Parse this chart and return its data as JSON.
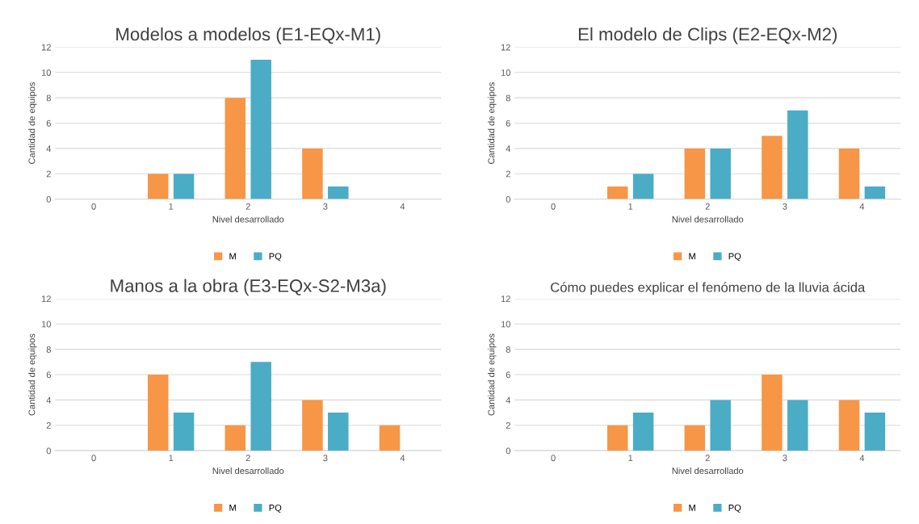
{
  "chart_data": [
    {
      "type": "bar",
      "title": "Modelos a modelos (E1-EQx-M1)",
      "xlabel": "Nivel desarrollado",
      "ylabel": "Cantidad de equipos",
      "categories": [
        "0",
        "1",
        "2",
        "3",
        "4"
      ],
      "ylim": [
        0,
        12
      ],
      "yticks": [
        0,
        2,
        4,
        6,
        8,
        10,
        12
      ],
      "grid": "y",
      "legend": "bottom",
      "series": [
        {
          "name": "M",
          "color": "#f79646",
          "values": [
            0,
            2,
            8,
            4,
            0
          ]
        },
        {
          "name": "PQ",
          "color": "#4bacc6",
          "values": [
            0,
            2,
            11,
            1,
            0
          ]
        }
      ]
    },
    {
      "type": "bar",
      "title": "El modelo de Clips (E2-EQx-M2)",
      "xlabel": "Nivel desarrollado",
      "ylabel": "Cantidad de equipos",
      "categories": [
        "0",
        "1",
        "2",
        "3",
        "4"
      ],
      "ylim": [
        0,
        12
      ],
      "yticks": [
        0,
        2,
        4,
        6,
        8,
        10,
        12
      ],
      "grid": "y",
      "legend": "bottom",
      "series": [
        {
          "name": "M",
          "color": "#f79646",
          "values": [
            0,
            1,
            4,
            5,
            4
          ]
        },
        {
          "name": "PQ",
          "color": "#4bacc6",
          "values": [
            0,
            2,
            4,
            7,
            1
          ]
        }
      ]
    },
    {
      "type": "bar",
      "title": "Manos a la obra (E3-EQx-S2-M3a)",
      "xlabel": "Nivel desarrollado",
      "ylabel": "Cantidad de equipos",
      "categories": [
        "0",
        "1",
        "2",
        "3",
        "4"
      ],
      "ylim": [
        0,
        12
      ],
      "yticks": [
        0,
        2,
        4,
        6,
        8,
        10,
        12
      ],
      "grid": "y",
      "legend": "bottom",
      "series": [
        {
          "name": "M",
          "color": "#f79646",
          "values": [
            0,
            6,
            2,
            4,
            2
          ]
        },
        {
          "name": "PQ",
          "color": "#4bacc6",
          "values": [
            0,
            3,
            7,
            3,
            0
          ]
        }
      ]
    },
    {
      "type": "bar",
      "title": "Cómo puedes explicar el fenómeno de la lluvia ácida",
      "xlabel": "Nivel desarrollado",
      "ylabel": "Cantidad de equipos",
      "categories": [
        "0",
        "1",
        "2",
        "3",
        "4"
      ],
      "ylim": [
        0,
        12
      ],
      "yticks": [
        0,
        2,
        4,
        6,
        8,
        10,
        12
      ],
      "grid": "y",
      "legend": "bottom",
      "series": [
        {
          "name": "M",
          "color": "#f79646",
          "values": [
            0,
            2,
            2,
            6,
            4
          ]
        },
        {
          "name": "PQ",
          "color": "#4bacc6",
          "values": [
            0,
            3,
            4,
            4,
            3
          ]
        }
      ]
    }
  ]
}
